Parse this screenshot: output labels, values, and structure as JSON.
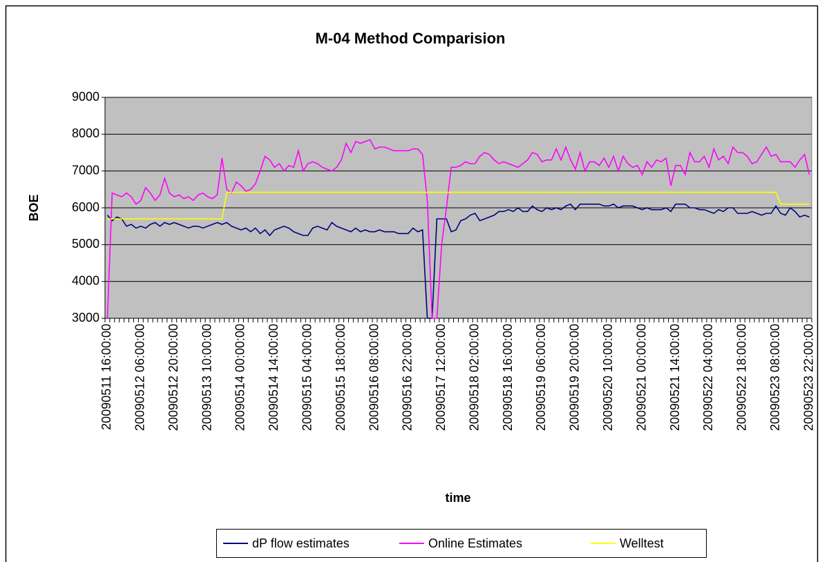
{
  "chart_data": {
    "type": "line",
    "title": "M-04 Method Comparision",
    "x_label": "time",
    "y_label": "BOE",
    "categories": [
      "20090511 16:00:00",
      null,
      null,
      null,
      null,
      null,
      null,
      "20090512 06:00:00",
      null,
      null,
      null,
      null,
      null,
      null,
      "20090512 20:00:00",
      null,
      null,
      null,
      null,
      null,
      null,
      "20090513 10:00:00",
      null,
      null,
      null,
      null,
      null,
      null,
      "20090514 00:00:00",
      null,
      null,
      null,
      null,
      null,
      null,
      "20090514 14:00:00",
      null,
      null,
      null,
      null,
      null,
      null,
      "20090515 04:00:00",
      null,
      null,
      null,
      null,
      null,
      null,
      "20090515 18:00:00",
      null,
      null,
      null,
      null,
      null,
      null,
      "20090516 08:00:00",
      null,
      null,
      null,
      null,
      null,
      null,
      "20090516 22:00:00",
      null,
      null,
      null,
      null,
      null,
      null,
      "20090517 12:00:00",
      null,
      null,
      null,
      null,
      null,
      null,
      "20090518 02:00:00",
      null,
      null,
      null,
      null,
      null,
      null,
      "20090518 16:00:00",
      null,
      null,
      null,
      null,
      null,
      null,
      "20090519 06:00:00",
      null,
      null,
      null,
      null,
      null,
      null,
      "20090519 20:00:00",
      null,
      null,
      null,
      null,
      null,
      null,
      "20090520 10:00:00",
      null,
      null,
      null,
      null,
      null,
      null,
      "20090521 00:00:00",
      null,
      null,
      null,
      null,
      null,
      null,
      "20090521 14:00:00",
      null,
      null,
      null,
      null,
      null,
      null,
      "20090522 04:00:00",
      null,
      null,
      null,
      null,
      null,
      null,
      "20090522 18:00:00",
      null,
      null,
      null,
      null,
      null,
      null,
      "20090523 08:00:00",
      null,
      null,
      null,
      null,
      null,
      null,
      "20090523 22:00:00"
    ],
    "series": [
      {
        "name": "dP flow estimates",
        "color": "#000080",
        "values": [
          5800,
          5650,
          5750,
          5700,
          5500,
          5550,
          5450,
          5500,
          5450,
          5550,
          5600,
          5500,
          5600,
          5550,
          5600,
          5550,
          5500,
          5450,
          5500,
          5500,
          5450,
          5500,
          5550,
          5600,
          5550,
          5600,
          5500,
          5450,
          5400,
          5450,
          5350,
          5450,
          5300,
          5400,
          5250,
          5400,
          5450,
          5500,
          5450,
          5350,
          5300,
          5250,
          5250,
          5450,
          5500,
          5450,
          5400,
          5600,
          5500,
          5450,
          5400,
          5350,
          5450,
          5350,
          5400,
          5350,
          5350,
          5400,
          5350,
          5350,
          5350,
          5300,
          5300,
          5300,
          5450,
          5350,
          5400,
          3000,
          3000,
          5700,
          5700,
          5700,
          5350,
          5400,
          5650,
          5700,
          5800,
          5850,
          5650,
          5700,
          5750,
          5800,
          5900,
          5900,
          5950,
          5900,
          6000,
          5900,
          5900,
          6050,
          5950,
          5900,
          6000,
          5950,
          6000,
          5950,
          6050,
          6100,
          5950,
          6100,
          6100,
          6100,
          6100,
          6100,
          6050,
          6050,
          6100,
          6000,
          6050,
          6050,
          6050,
          6000,
          5950,
          6000,
          5950,
          5950,
          5950,
          6000,
          5900,
          6100,
          6100,
          6100,
          6000,
          6000,
          5950,
          5950,
          5900,
          5850,
          5950,
          5900,
          6000,
          6000,
          5850,
          5850,
          5850,
          5900,
          5850,
          5800,
          5850,
          5850,
          6050,
          5850,
          5800,
          6000,
          5900,
          5750,
          5800,
          5750
        ]
      },
      {
        "name": "Online Estimates",
        "color": "#ff00ff",
        "values": [
          3000,
          6400,
          6350,
          6300,
          6400,
          6300,
          6100,
          6200,
          6550,
          6400,
          6200,
          6350,
          6800,
          6400,
          6300,
          6350,
          6250,
          6300,
          6200,
          6350,
          6400,
          6300,
          6250,
          6350,
          7350,
          6500,
          6400,
          6700,
          6600,
          6450,
          6500,
          6650,
          7000,
          7400,
          7300,
          7100,
          7200,
          7000,
          7150,
          7100,
          7550,
          7000,
          7200,
          7250,
          7200,
          7100,
          7050,
          7000,
          7100,
          7300,
          7750,
          7500,
          7800,
          7750,
          7800,
          7850,
          7600,
          7650,
          7650,
          7600,
          7550,
          7550,
          7550,
          7550,
          7600,
          7600,
          7450,
          6200,
          3000,
          3000,
          5000,
          6000,
          7100,
          7100,
          7150,
          7250,
          7200,
          7200,
          7400,
          7500,
          7450,
          7300,
          7200,
          7250,
          7200,
          7150,
          7100,
          7200,
          7300,
          7500,
          7450,
          7250,
          7300,
          7300,
          7600,
          7300,
          7650,
          7300,
          7050,
          7500,
          7000,
          7250,
          7250,
          7150,
          7350,
          7100,
          7400,
          7000,
          7400,
          7200,
          7100,
          7150,
          6900,
          7250,
          7100,
          7300,
          7250,
          7350,
          6600,
          7150,
          7150,
          6900,
          7500,
          7250,
          7250,
          7400,
          7100,
          7600,
          7300,
          7400,
          7200,
          7650,
          7500,
          7500,
          7400,
          7200,
          7250,
          7450,
          7650,
          7400,
          7450,
          7250,
          7250,
          7250,
          7100,
          7300,
          7450,
          6900
        ]
      },
      {
        "name": "Welltest",
        "color": "#ffff00",
        "values": [
          5700,
          5700,
          5700,
          5700,
          5700,
          5700,
          5700,
          5700,
          5700,
          5700,
          5700,
          5700,
          5700,
          5700,
          5700,
          5700,
          5700,
          5700,
          5700,
          5700,
          5700,
          5700,
          5700,
          5700,
          5700,
          6420,
          6420,
          6420,
          6420,
          6420,
          6420,
          6420,
          6420,
          6420,
          6420,
          6420,
          6420,
          6420,
          6420,
          6420,
          6420,
          6420,
          6420,
          6420,
          6420,
          6420,
          6420,
          6420,
          6420,
          6420,
          6420,
          6420,
          6420,
          6420,
          6420,
          6420,
          6420,
          6420,
          6420,
          6420,
          6420,
          6420,
          6420,
          6420,
          6420,
          6420,
          6420,
          6420,
          6420,
          6420,
          6420,
          6420,
          6420,
          6420,
          6420,
          6420,
          6420,
          6420,
          6420,
          6420,
          6420,
          6420,
          6420,
          6420,
          6420,
          6420,
          6420,
          6420,
          6420,
          6420,
          6420,
          6420,
          6420,
          6420,
          6420,
          6420,
          6420,
          6420,
          6420,
          6420,
          6420,
          6420,
          6420,
          6420,
          6420,
          6420,
          6420,
          6420,
          6420,
          6420,
          6420,
          6420,
          6420,
          6420,
          6420,
          6420,
          6420,
          6420,
          6420,
          6420,
          6420,
          6420,
          6420,
          6420,
          6420,
          6420,
          6420,
          6420,
          6420,
          6420,
          6420,
          6420,
          6420,
          6420,
          6420,
          6420,
          6420,
          6420,
          6420,
          6420,
          6420,
          6100,
          6100,
          6100,
          6100,
          6100,
          6100,
          6100
        ]
      }
    ],
    "ylim": [
      3000,
      9000
    ],
    "yticks": [
      3000,
      4000,
      5000,
      6000,
      7000,
      8000,
      9000
    ],
    "grid": true,
    "legend": "bottom",
    "plot_background": "#c0c0c0"
  }
}
